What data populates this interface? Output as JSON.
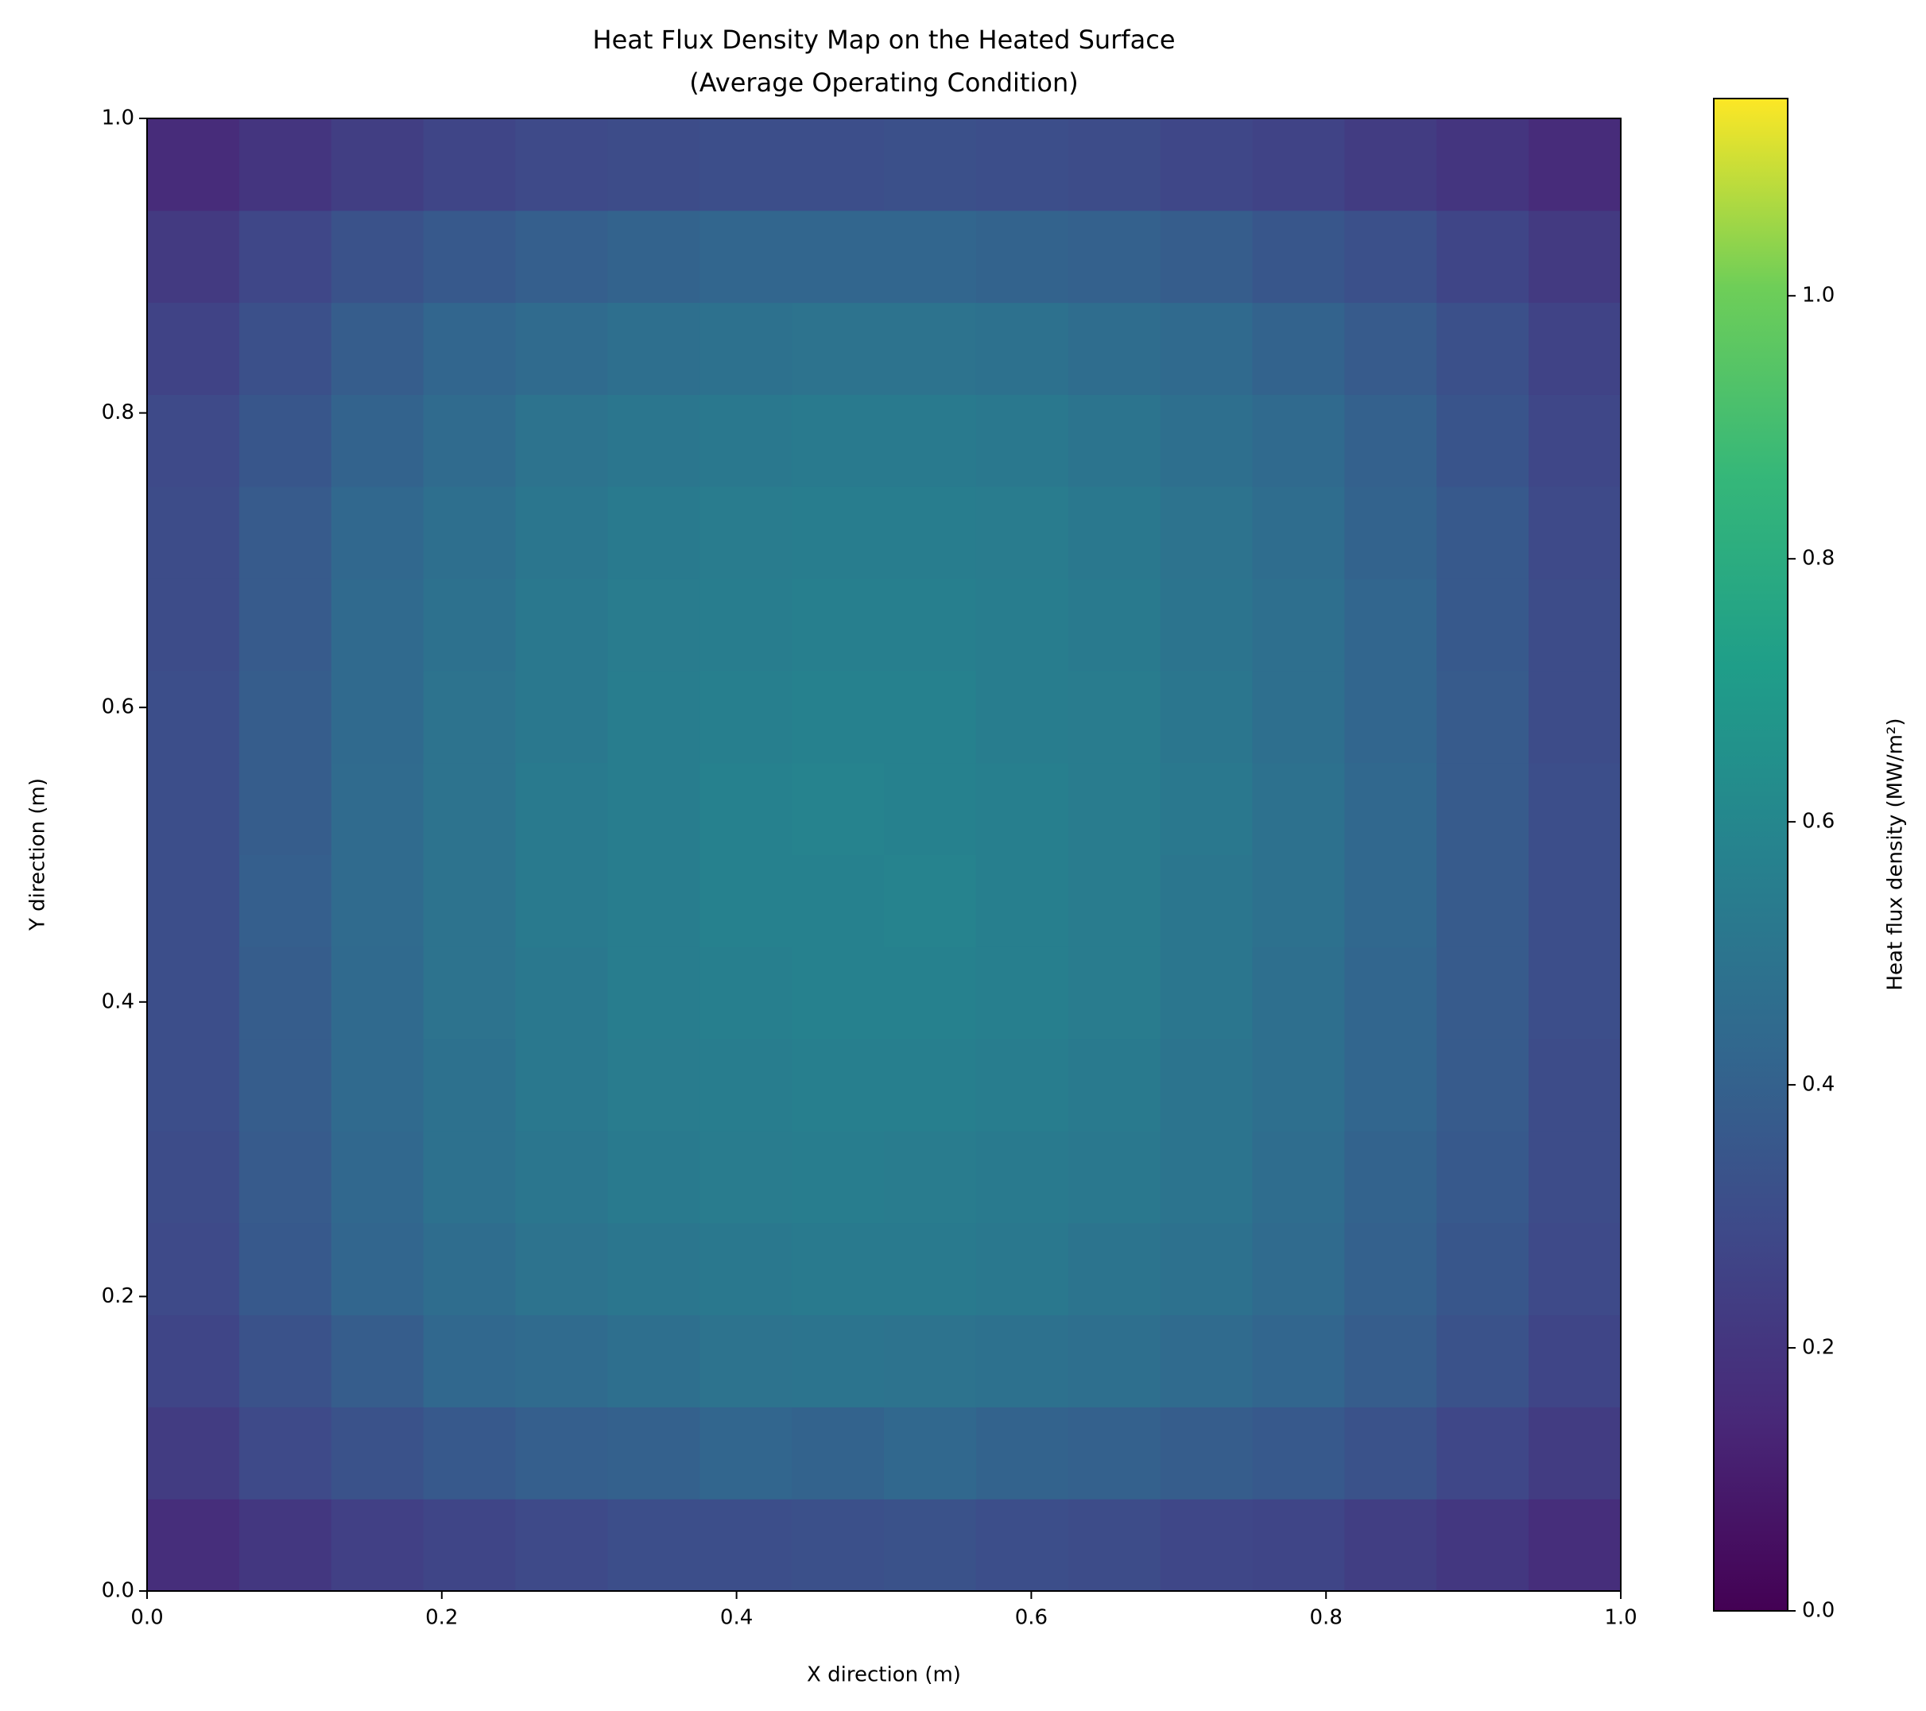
{
  "chart_data": {
    "type": "heatmap",
    "title": [
      "Heat Flux Density Map on the Heated Surface",
      "(Average Operating Condition)"
    ],
    "x_label": "X direction (m)",
    "y_label": "Y direction (m)",
    "xlim": [
      0,
      1
    ],
    "ylim": [
      0,
      1
    ],
    "xticks": [
      {
        "value": 0,
        "label": "0.0"
      },
      {
        "value": 0.2,
        "label": "0.2"
      },
      {
        "value": 0.4,
        "label": "0.4"
      },
      {
        "value": 0.6,
        "label": "0.6"
      },
      {
        "value": 0.8,
        "label": "0.8"
      },
      {
        "value": 1,
        "label": "1.0"
      }
    ],
    "yticks": [
      {
        "value": 0,
        "label": "0.0"
      },
      {
        "value": 0.2,
        "label": "0.2"
      },
      {
        "value": 0.4,
        "label": "0.4"
      },
      {
        "value": 0.6,
        "label": "0.6"
      },
      {
        "value": 0.8,
        "label": "0.8"
      },
      {
        "value": 1,
        "label": "1.0"
      }
    ],
    "colormap": "viridis",
    "colorbar_label": "Heat flux density (MW/m²)",
    "clim": [
      0,
      1.15
    ],
    "cticks": [
      {
        "value": 0,
        "label": "0.0"
      },
      {
        "value": 0.2,
        "label": "0.2"
      },
      {
        "value": 0.4,
        "label": "0.4"
      },
      {
        "value": 0.6,
        "label": "0.6"
      },
      {
        "value": 0.8,
        "label": "0.8"
      },
      {
        "value": 1,
        "label": "1.0"
      }
    ],
    "z": [
      [
        0.17,
        0.21,
        0.25,
        0.27,
        0.29,
        0.31,
        0.31,
        0.32,
        0.33,
        0.31,
        0.3,
        0.28,
        0.27,
        0.24,
        0.21,
        0.17
      ],
      [
        0.23,
        0.29,
        0.33,
        0.36,
        0.39,
        0.4,
        0.42,
        0.41,
        0.43,
        0.41,
        0.4,
        0.38,
        0.36,
        0.33,
        0.28,
        0.23
      ],
      [
        0.27,
        0.33,
        0.38,
        0.43,
        0.45,
        0.47,
        0.49,
        0.5,
        0.49,
        0.48,
        0.47,
        0.45,
        0.42,
        0.38,
        0.33,
        0.27
      ],
      [
        0.29,
        0.36,
        0.42,
        0.46,
        0.49,
        0.51,
        0.52,
        0.53,
        0.53,
        0.52,
        0.5,
        0.48,
        0.45,
        0.4,
        0.35,
        0.29
      ],
      [
        0.3,
        0.37,
        0.43,
        0.48,
        0.51,
        0.53,
        0.54,
        0.55,
        0.54,
        0.53,
        0.52,
        0.5,
        0.46,
        0.41,
        0.36,
        0.3
      ],
      [
        0.31,
        0.38,
        0.44,
        0.48,
        0.52,
        0.54,
        0.55,
        0.56,
        0.56,
        0.55,
        0.53,
        0.5,
        0.47,
        0.42,
        0.37,
        0.3
      ],
      [
        0.31,
        0.38,
        0.44,
        0.49,
        0.52,
        0.55,
        0.56,
        0.57,
        0.57,
        0.56,
        0.54,
        0.51,
        0.47,
        0.42,
        0.37,
        0.31
      ],
      [
        0.31,
        0.39,
        0.45,
        0.49,
        0.53,
        0.55,
        0.57,
        0.57,
        0.58,
        0.56,
        0.54,
        0.51,
        0.48,
        0.43,
        0.37,
        0.31
      ],
      [
        0.31,
        0.38,
        0.45,
        0.49,
        0.53,
        0.55,
        0.57,
        0.58,
        0.57,
        0.56,
        0.54,
        0.52,
        0.48,
        0.43,
        0.37,
        0.31
      ],
      [
        0.31,
        0.38,
        0.44,
        0.49,
        0.52,
        0.55,
        0.56,
        0.57,
        0.57,
        0.55,
        0.54,
        0.51,
        0.47,
        0.42,
        0.37,
        0.3
      ],
      [
        0.3,
        0.37,
        0.44,
        0.48,
        0.52,
        0.54,
        0.55,
        0.56,
        0.56,
        0.55,
        0.53,
        0.5,
        0.47,
        0.42,
        0.36,
        0.3
      ],
      [
        0.3,
        0.37,
        0.43,
        0.47,
        0.51,
        0.53,
        0.54,
        0.55,
        0.55,
        0.54,
        0.52,
        0.49,
        0.46,
        0.41,
        0.36,
        0.29
      ],
      [
        0.29,
        0.35,
        0.41,
        0.45,
        0.49,
        0.51,
        0.52,
        0.53,
        0.53,
        0.52,
        0.5,
        0.47,
        0.44,
        0.4,
        0.34,
        0.28
      ],
      [
        0.26,
        0.32,
        0.38,
        0.42,
        0.45,
        0.47,
        0.48,
        0.49,
        0.49,
        0.48,
        0.46,
        0.44,
        0.41,
        0.37,
        0.32,
        0.26
      ],
      [
        0.22,
        0.28,
        0.33,
        0.36,
        0.39,
        0.41,
        0.42,
        0.42,
        0.42,
        0.41,
        0.4,
        0.38,
        0.35,
        0.32,
        0.27,
        0.22
      ],
      [
        0.16,
        0.2,
        0.24,
        0.27,
        0.29,
        0.3,
        0.31,
        0.31,
        0.32,
        0.31,
        0.3,
        0.28,
        0.26,
        0.23,
        0.2,
        0.16
      ]
    ]
  }
}
